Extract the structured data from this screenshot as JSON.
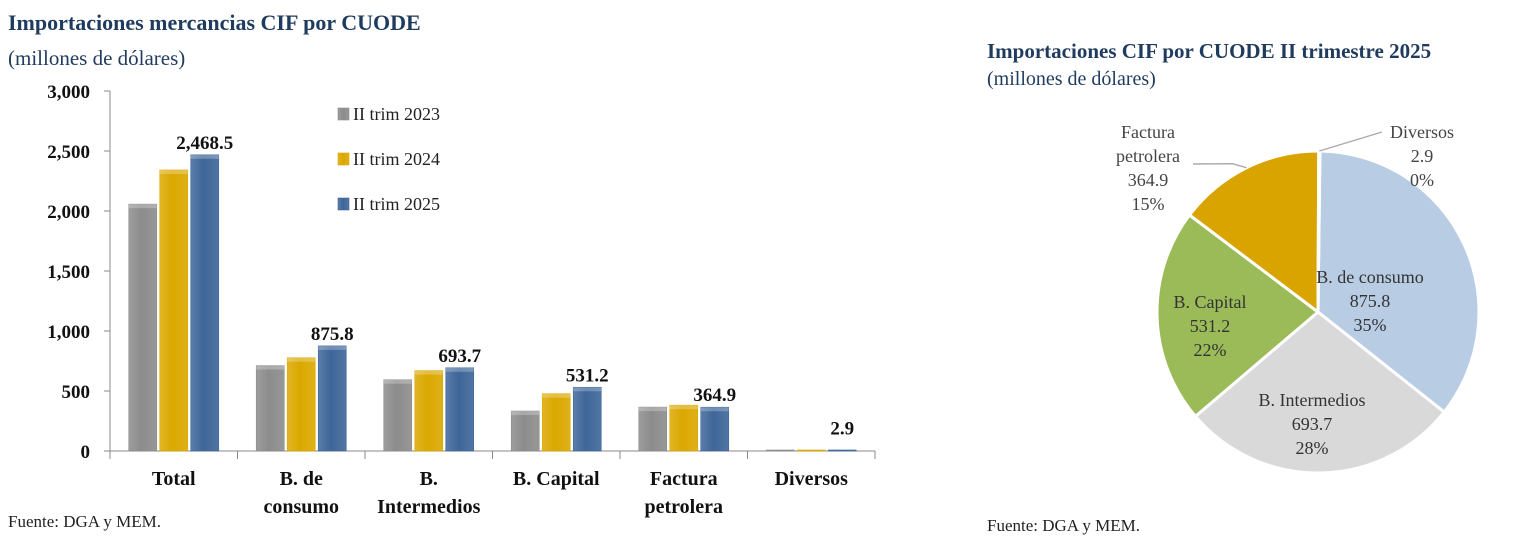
{
  "left_chart": {
    "title": "Importaciones mercancias CIF por CUODE",
    "subtitle": "(millones de dólares)",
    "source": "Fuente: DGA y MEM."
  },
  "right_chart": {
    "title": "Importaciones CIF por CUODE  II trimestre  2025",
    "subtitle": "(millones de dólares)",
    "source": "Fuente: DGA y MEM."
  },
  "colors": {
    "s2023": "#8c8c8c",
    "s2024": "#dba800",
    "s2025": "#3e6699",
    "consumo": "#b8cce4",
    "intermedios": "#d9d9d9",
    "capital": "#9bbb59",
    "petrolera": "#d9a300",
    "diversos": "#d9a300",
    "title": "#1f3b5e"
  },
  "chart_data": [
    {
      "type": "bar",
      "title": "Importaciones mercancias CIF por CUODE",
      "subtitle": "(millones de dólares)",
      "categories": [
        [
          "Total"
        ],
        [
          "B. de",
          "consumo"
        ],
        [
          "B.",
          "Intermedios"
        ],
        [
          "B. Capital"
        ],
        [
          "Factura",
          "petrolera"
        ],
        [
          "Diversos"
        ]
      ],
      "series": [
        {
          "name": "II trim 2023",
          "values": [
            2057,
            712,
            594,
            333,
            366,
            3
          ]
        },
        {
          "name": "II trim 2024",
          "values": [
            2342,
            777,
            670,
            478,
            382,
            3
          ]
        },
        {
          "name": "II trim 2025",
          "values": [
            2468.5,
            875.8,
            693.7,
            531.2,
            364.9,
            2.9
          ]
        }
      ],
      "data_labels": [
        "2,468.5",
        "875.8",
        "693.7",
        "531.2",
        "364.9",
        "2.9"
      ],
      "y_ticks": [
        "0",
        "500",
        "1,000",
        "1,500",
        "2,000",
        "2,500",
        "3,000"
      ],
      "ylim": [
        0,
        3000
      ],
      "legend_position": "top-right",
      "grid": false
    },
    {
      "type": "pie",
      "title": "Importaciones CIF por CUODE  II trimestre  2025",
      "subtitle": "(millones de dólares)",
      "slices": [
        {
          "key": "consumo",
          "label": "B. de consumo",
          "value": 875.8,
          "value_text": "875.8",
          "pct": "35%"
        },
        {
          "key": "intermedios",
          "label": "B. Intermedios",
          "value": 693.7,
          "value_text": "693.7",
          "pct": "28%"
        },
        {
          "key": "capital",
          "label": "B. Capital",
          "value": 531.2,
          "value_text": "531.2",
          "pct": "22%"
        },
        {
          "key": "petrolera",
          "label": "Factura petrolera",
          "label_lines": [
            "Factura",
            "petrolera"
          ],
          "value": 364.9,
          "value_text": "364.9",
          "pct": "15%"
        },
        {
          "key": "diversos",
          "label": "Diversos",
          "value": 2.9,
          "value_text": "2.9",
          "pct": "0%"
        }
      ]
    }
  ]
}
